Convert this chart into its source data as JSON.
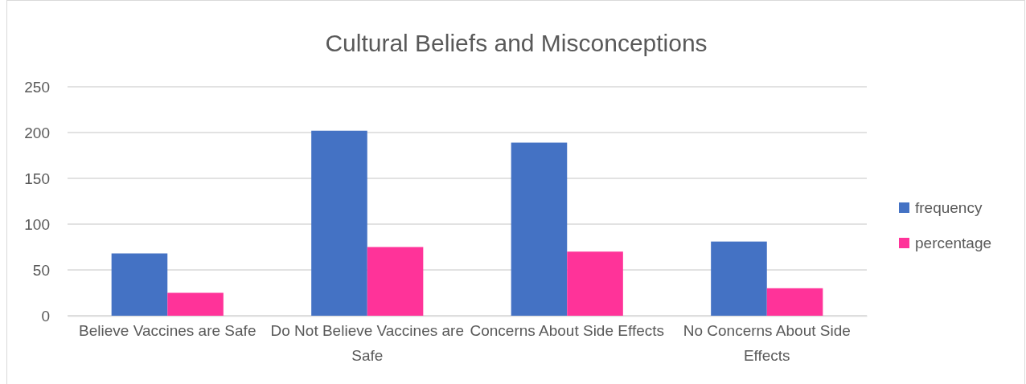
{
  "chart_data": {
    "type": "bar",
    "title": "Cultural Beliefs and Misconceptions",
    "categories": [
      "Believe Vaccines are Safe",
      "Do Not Believe Vaccines are Safe",
      "Concerns About Side Effects",
      "No Concerns About Side Effects"
    ],
    "series": [
      {
        "name": "frequency",
        "color": "#4472c4",
        "values": [
          68,
          202,
          189,
          81
        ]
      },
      {
        "name": "percentage",
        "color": "#ff3399",
        "values": [
          25,
          75,
          70,
          30
        ]
      }
    ],
    "ylim": [
      0,
      250
    ],
    "yticks": [
      0,
      50,
      100,
      150,
      200,
      250
    ],
    "grid": "y",
    "legend": "right"
  }
}
